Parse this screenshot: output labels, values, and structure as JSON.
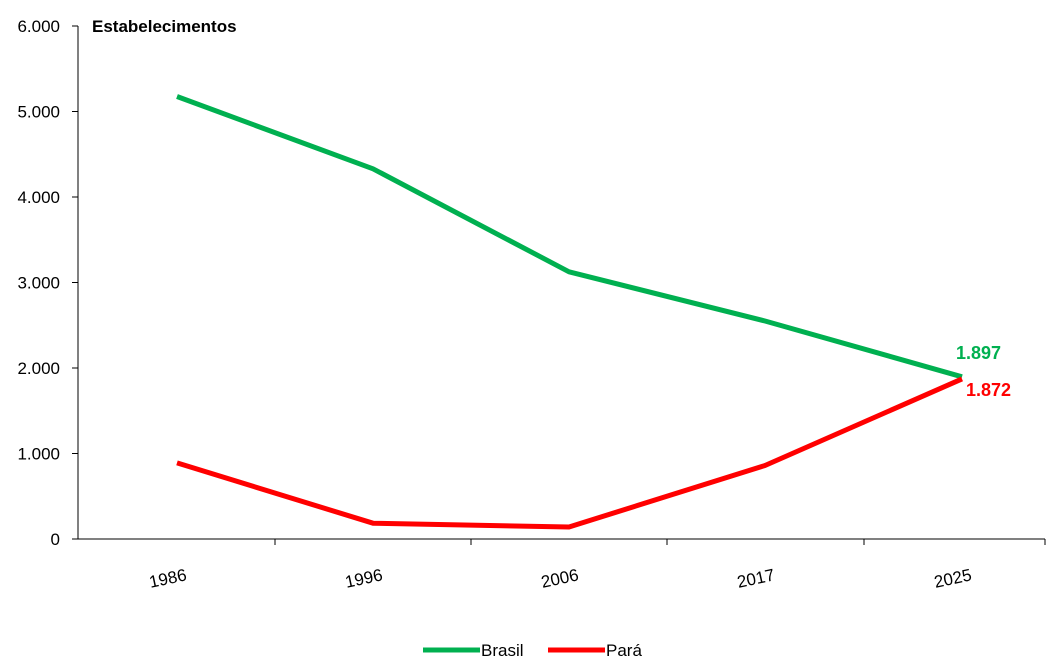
{
  "chart_data": {
    "type": "line",
    "ylabel": "Estabelecimentos",
    "xlabel": "",
    "categories": [
      "1986",
      "1996",
      "2006",
      "2017",
      "2025"
    ],
    "ylim": [
      0,
      6000
    ],
    "yticks": [
      0,
      1000,
      2000,
      3000,
      4000,
      5000,
      6000
    ],
    "ytick_labels": [
      "0",
      "1.000",
      "2.000",
      "3.000",
      "4.000",
      "5.000",
      "6.000"
    ],
    "grid": false,
    "legend_position": "bottom-center",
    "series": [
      {
        "name": "Brasil",
        "color": "#00B050",
        "values": [
          5175,
          4330,
          3125,
          2550,
          1897
        ],
        "end_label": "1.897"
      },
      {
        "name": "Pará",
        "color": "#FF0000",
        "values": [
          890,
          185,
          140,
          860,
          1872
        ],
        "end_label": "1.872"
      }
    ]
  }
}
